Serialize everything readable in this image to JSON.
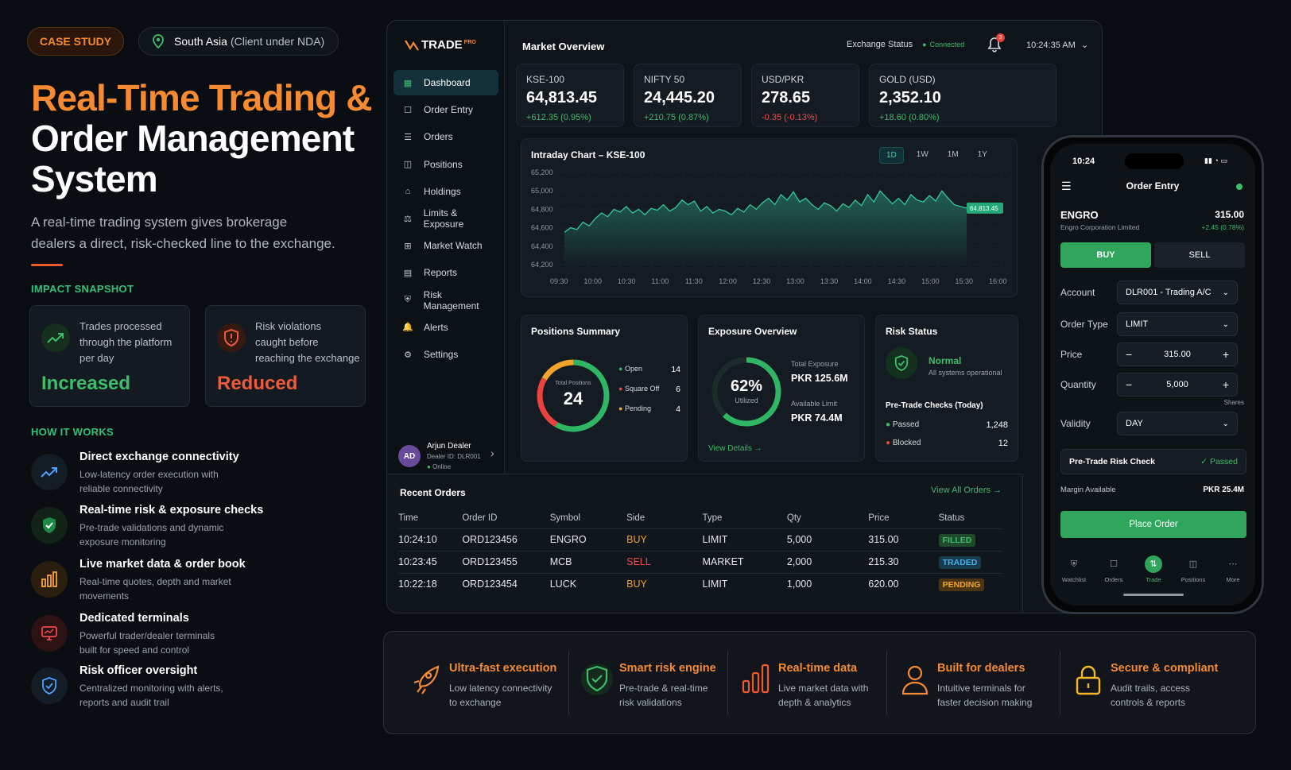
{
  "header": {
    "tag": "CASE STUDY",
    "location_main": "South Asia",
    "location_sub": "(Client under NDA)"
  },
  "hero": {
    "title_orange": "Real-Time Trading &",
    "title_white1": "Order Management",
    "title_white2": "System",
    "desc1": "A real-time trading system gives brokerage",
    "desc2": "dealers a direct, risk-checked line to the exchange."
  },
  "impact": {
    "heading": "IMPACT SNAPSHOT",
    "cards": [
      {
        "l1": "Trades processed",
        "l2": "through the platform",
        "l3": "per day",
        "value": "Increased",
        "color": "#3dbe6a"
      },
      {
        "l1": "Risk violations",
        "l2": "caught before",
        "l3": "reaching the exchange",
        "value": "Reduced",
        "color": "#ef5a3a"
      }
    ]
  },
  "how": {
    "heading": "HOW IT WORKS",
    "items": [
      {
        "title": "Direct exchange connectivity",
        "d1": "Low-latency order execution with",
        "d2": "reliable connectivity"
      },
      {
        "title": "Real-time risk & exposure checks",
        "d1": "Pre-trade validations and dynamic",
        "d2": "exposure monitoring"
      },
      {
        "title": "Live market data & order book",
        "d1": "Real-time quotes, depth and market",
        "d2": "movements"
      },
      {
        "title": "Dedicated terminals",
        "d1": "Powerful trader/dealer terminals",
        "d2": "built for speed and control"
      },
      {
        "title": "Risk officer oversight",
        "d1": "Centralized monitoring with alerts,",
        "d2": "reports and audit trail"
      }
    ]
  },
  "dashboard": {
    "logo": "TRADE",
    "logo_sup": "PRO",
    "nav": [
      "Dashboard",
      "Order Entry",
      "Orders",
      "Positions",
      "Holdings",
      "Limits & Exposure",
      "Market Watch",
      "Reports",
      "Risk Management",
      "Alerts",
      "Settings"
    ],
    "user": {
      "initials": "AD",
      "name": "Arjun Dealer",
      "id": "Dealer ID: DLR001",
      "status": "Online"
    },
    "topbar": {
      "title": "Market Overview",
      "exchange_label": "Exchange Status",
      "exchange_status": "Connected",
      "notif_count": "3",
      "time": "10:24:35 AM"
    },
    "tickers": [
      {
        "name": "KSE-100",
        "value": "64,813.45",
        "change": "+612.35 (0.95%)",
        "up": true
      },
      {
        "name": "NIFTY 50",
        "value": "24,445.20",
        "change": "+210.75 (0.87%)",
        "up": true
      },
      {
        "name": "USD/PKR",
        "value": "278.65",
        "change": "-0.35 (-0.13%)",
        "up": false
      },
      {
        "name": "GOLD (USD)",
        "value": "2,352.10",
        "change": "+18.60 (0.80%)",
        "up": true
      }
    ],
    "chart_title": "Intraday Chart – KSE-100",
    "chart_tabs": [
      "1D",
      "1W",
      "1M",
      "1Y"
    ],
    "positions": {
      "title": "Positions Summary",
      "total_label": "Total Positions",
      "total": "24",
      "items": [
        {
          "label": "Open",
          "value": "14",
          "color": "#2fb563"
        },
        {
          "label": "Square Off",
          "value": "6",
          "color": "#e8433c"
        },
        {
          "label": "Pending",
          "value": "4",
          "color": "#f0a52a"
        }
      ]
    },
    "exposure": {
      "title": "Exposure Overview",
      "pct": "62%",
      "pct_label": "Utilized",
      "pct_value": 0.62,
      "total_label": "Total Exposure",
      "total": "PKR 125.6M",
      "limit_label": "Available Limit",
      "limit": "PKR 74.4M",
      "link": "View Details"
    },
    "risk": {
      "title": "Risk Status",
      "status": "Normal",
      "status_sub": "All systems operational",
      "checks_title": "Pre-Trade Checks (Today)",
      "passed_label": "Passed",
      "passed": "1,248",
      "blocked_label": "Blocked",
      "blocked": "12"
    },
    "orders": {
      "title": "Recent Orders",
      "link": "View All Orders",
      "headers": [
        "Time",
        "Order ID",
        "Symbol",
        "Side",
        "Type",
        "Qty",
        "Price",
        "Status"
      ],
      "rows": [
        [
          "10:24:10",
          "ORD123456",
          "ENGRO",
          "BUY",
          "LIMIT",
          "5,000",
          "315.00",
          "FILLED"
        ],
        [
          "10:23:45",
          "ORD123455",
          "MCB",
          "SELL",
          "MARKET",
          "2,000",
          "215.30",
          "TRADED"
        ],
        [
          "10:22:18",
          "ORD123454",
          "LUCK",
          "BUY",
          "LIMIT",
          "1,000",
          "620.00",
          "PENDING"
        ]
      ]
    }
  },
  "chart_data": {
    "type": "line",
    "title": "Intraday Chart – KSE-100",
    "x_ticks": [
      "09:30",
      "10:00",
      "10:30",
      "11:00",
      "11:30",
      "12:00",
      "12:30",
      "13:00",
      "13:30",
      "14:00",
      "14:30",
      "15:00",
      "15:30",
      "16:00"
    ],
    "y_ticks": [
      "65,200",
      "65,000",
      "64,800",
      "64,600",
      "64,400",
      "64,200"
    ],
    "ylim": [
      64200,
      65200
    ],
    "last_label": "64,813.45",
    "values": [
      64550,
      64600,
      64580,
      64660,
      64620,
      64700,
      64760,
      64720,
      64800,
      64770,
      64830,
      64760,
      64800,
      64740,
      64810,
      64790,
      64850,
      64780,
      64820,
      64900,
      64850,
      64890,
      64780,
      64830,
      64760,
      64800,
      64780,
      64740,
      64810,
      64770,
      64850,
      64800,
      64870,
      64920,
      64850,
      64960,
      64900,
      64990,
      64880,
      64920,
      64850,
      64800,
      64870,
      64840,
      64780,
      64860,
      64820,
      64900,
      64840,
      64960,
      64880,
      65000,
      64930,
      64860,
      64920,
      64850,
      64960,
      64900,
      64880,
      64950,
      64890,
      65000,
      64920,
      64850,
      64830,
      64813
    ]
  },
  "phone": {
    "time": "10:24",
    "title": "Order Entry",
    "symbol": "ENGRO",
    "company": "Engro Corporation Limited",
    "price": "315.00",
    "change": "+2.45 (0.78%)",
    "buy": "BUY",
    "sell": "SELL",
    "fields": [
      {
        "label": "Account",
        "value": "DLR001 - Trading A/C"
      },
      {
        "label": "Order Type",
        "value": "LIMIT"
      },
      {
        "label": "Price",
        "value": "315.00"
      },
      {
        "label": "Quantity",
        "value": "5,000"
      },
      {
        "label": "Validity",
        "value": "DAY"
      }
    ],
    "shares": "Shares",
    "risk_label": "Pre-Trade Risk Check",
    "risk_status": "Passed",
    "margin_label": "Margin Available",
    "margin": "PKR 25.4M",
    "place": "Place Order",
    "tabs": [
      "Watchlist",
      "Orders",
      "Trade",
      "Positions",
      "More"
    ]
  },
  "features": [
    {
      "title": "Ultra-fast execution",
      "d1": "Low latency connectivity",
      "d2": "to exchange"
    },
    {
      "title": "Smart risk engine",
      "d1": "Pre-trade & real-time",
      "d2": "risk validations"
    },
    {
      "title": "Real-time data",
      "d1": "Live market data with",
      "d2": "depth & analytics"
    },
    {
      "title": "Built for dealers",
      "d1": "Intuitive terminals for",
      "d2": "faster decision making"
    },
    {
      "title": "Secure & compliant",
      "d1": "Audit trails, access",
      "d2": "controls & reports"
    }
  ]
}
